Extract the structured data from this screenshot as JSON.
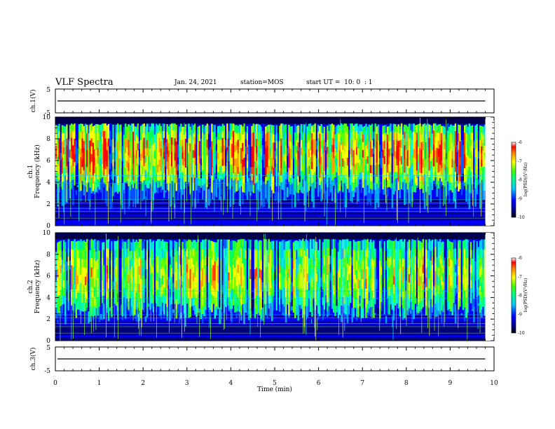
{
  "header": {
    "title": "VLF Spectra",
    "date": "Jan. 24, 2021",
    "station": "station=MOS",
    "start": "start UT =  10: 0  : 1"
  },
  "chart_data": [
    {
      "type": "line",
      "title": "",
      "ylabel": "ch.1(V)",
      "xlim": [
        0,
        10
      ],
      "ylim": [
        -5,
        5
      ],
      "yticks": [
        "5",
        "-5"
      ],
      "series": [
        {
          "name": "",
          "x": [
            0.05,
            9.8
          ],
          "values": [
            0,
            0
          ]
        }
      ]
    },
    {
      "type": "heatmap",
      "ylabel": "Frequency (kHz)",
      "channel": "ch.1",
      "xlim": [
        0,
        10
      ],
      "ylim": [
        0,
        10
      ],
      "yticks": [
        "0",
        "2",
        "4",
        "6",
        "8",
        "10"
      ],
      "data_xrange": [
        0,
        9.8
      ],
      "colorbar": {
        "label": "log(PSD)(V²/Hz)",
        "range": [
          -10,
          -6
        ],
        "ticks": [
          "-6",
          "-7",
          "-8",
          "-9",
          "-10"
        ]
      },
      "dominant_band_khz": [
        4.5,
        9.5
      ],
      "intensity": "high"
    },
    {
      "type": "heatmap",
      "ylabel": "Frequency (kHz)",
      "channel": "ch.2",
      "xlim": [
        0,
        10
      ],
      "ylim": [
        0,
        10
      ],
      "yticks": [
        "0",
        "2",
        "4",
        "6",
        "8",
        "10"
      ],
      "data_xrange": [
        0,
        9.8
      ],
      "colorbar": {
        "label": "log(PSD)(V²/Hz)",
        "range": [
          -10,
          -6
        ],
        "ticks": [
          "-6",
          "-7",
          "-8",
          "-9",
          "-10"
        ]
      },
      "dominant_band_khz": [
        3.5,
        9.5
      ],
      "intensity": "medium"
    },
    {
      "type": "line",
      "ylabel": "ch.3(V)",
      "xlabel": "Time (min)",
      "xlim": [
        0,
        10
      ],
      "ylim": [
        -5,
        5
      ],
      "yticks": [
        "5",
        "-5"
      ],
      "xticks": [
        "0",
        "1",
        "2",
        "3",
        "4",
        "5",
        "6",
        "7",
        "8",
        "9",
        "10"
      ],
      "series": [
        {
          "name": "",
          "x": [
            0.05,
            9.8
          ],
          "values": [
            0,
            0
          ]
        }
      ]
    }
  ]
}
